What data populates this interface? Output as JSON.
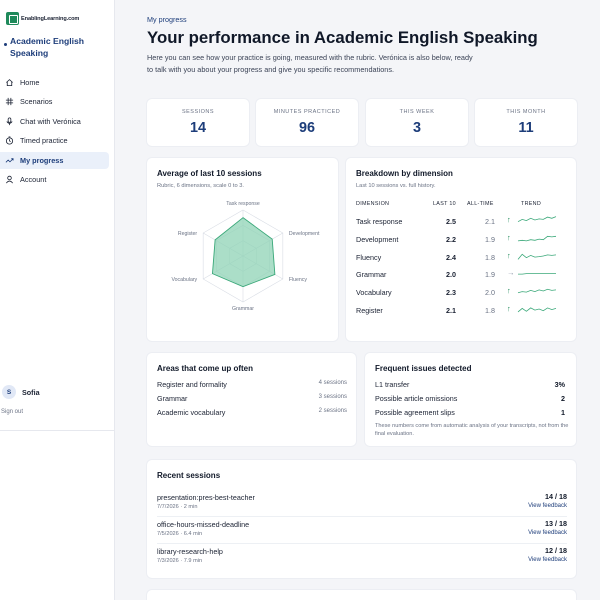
{
  "brand": {
    "name": "EnablingLearning.com"
  },
  "course": {
    "title": "Academic English Speaking"
  },
  "nav": [
    {
      "label": "Home",
      "icon": "home-icon"
    },
    {
      "label": "Scenarios",
      "icon": "grid-icon"
    },
    {
      "label": "Chat with Verónica",
      "icon": "mic-icon"
    },
    {
      "label": "Timed practice",
      "icon": "timer-icon"
    },
    {
      "label": "My progress",
      "icon": "trend-icon",
      "active": true
    },
    {
      "label": "Account",
      "icon": "user-icon"
    }
  ],
  "user": {
    "initial": "S",
    "name": "Sofia",
    "signout": "Sign out"
  },
  "header": {
    "eyebrow": "My progress",
    "title": "Your performance in Academic English Speaking",
    "description": "Here you can see how your practice is going, measured with the rubric. Verónica is also below, ready to talk with you about your progress and give you specific recommendations."
  },
  "stats": [
    {
      "label": "SESSIONS",
      "value": "14"
    },
    {
      "label": "MINUTES PRACTICED",
      "value": "96"
    },
    {
      "label": "THIS WEEK",
      "value": "3"
    },
    {
      "label": "THIS MONTH",
      "value": "11"
    }
  ],
  "radar": {
    "title": "Average of last 10 sessions",
    "subtitle": "Rubric, 6 dimensions, scale 0 to 3.",
    "axes": [
      "Task response",
      "Development",
      "Fluency",
      "Grammar",
      "Vocabulary",
      "Register"
    ],
    "values": [
      2.5,
      2.2,
      2.4,
      2.0,
      2.3,
      2.1
    ],
    "max": 3,
    "fill_color": "#8fd3b5",
    "stroke_color": "#3aa879"
  },
  "breakdown": {
    "title": "Breakdown by dimension",
    "subtitle": "Last 10 sessions vs. full history.",
    "headers": {
      "dimension": "DIMENSION",
      "last10": "LAST 10",
      "alltime": "ALL-TIME",
      "trend": "TREND"
    },
    "rows": [
      {
        "name": "Task response",
        "last10": "2.5",
        "alltime": "2.1",
        "arrow": "↑",
        "trend": [
          1.8,
          2.2,
          2.0,
          2.4,
          2.1,
          2.3,
          2.2,
          2.6,
          2.4,
          2.7
        ]
      },
      {
        "name": "Development",
        "last10": "2.2",
        "alltime": "1.9",
        "arrow": "↑",
        "trend": [
          1.6,
          1.7,
          1.6,
          1.8,
          1.7,
          1.9,
          1.8,
          2.4,
          2.3,
          2.4
        ]
      },
      {
        "name": "Fluency",
        "last10": "2.4",
        "alltime": "1.8",
        "arrow": "↑",
        "trend": [
          1.5,
          2.4,
          1.8,
          2.2,
          1.9,
          2.0,
          2.1,
          2.3,
          2.2,
          2.3
        ]
      },
      {
        "name": "Grammar",
        "last10": "2.0",
        "alltime": "1.9",
        "arrow": "→",
        "trend": [
          1.9,
          1.9,
          2.0,
          2.0,
          2.0,
          2.0,
          2.0,
          2.0,
          2.0,
          2.0
        ]
      },
      {
        "name": "Vocabulary",
        "last10": "2.3",
        "alltime": "2.0",
        "arrow": "↑",
        "trend": [
          1.8,
          2.0,
          1.9,
          2.2,
          2.0,
          2.3,
          2.1,
          2.4,
          2.2,
          2.3
        ]
      },
      {
        "name": "Register",
        "last10": "2.1",
        "alltime": "1.8",
        "arrow": "↑",
        "trend": [
          1.6,
          2.2,
          1.7,
          2.3,
          1.9,
          2.1,
          1.8,
          2.3,
          2.0,
          2.2
        ]
      }
    ]
  },
  "areas": {
    "title": "Areas that come up often",
    "items": [
      {
        "name": "Register and formality",
        "count": "4 sessions"
      },
      {
        "name": "Grammar",
        "count": "3 sessions"
      },
      {
        "name": "Academic vocabulary",
        "count": "2 sessions"
      }
    ]
  },
  "issues": {
    "title": "Frequent issues detected",
    "items": [
      {
        "name": "L1 transfer",
        "value": "3%"
      },
      {
        "name": "Possible article omissions",
        "value": "2"
      },
      {
        "name": "Possible agreement slips",
        "value": "1"
      }
    ],
    "note": "These numbers come from automatic analysis of your transcripts, not from the final evaluation."
  },
  "recent": {
    "title": "Recent sessions",
    "items": [
      {
        "name": "presentation:pres-best-teacher",
        "meta": "7/7/2026 · 2 min",
        "score": "14 / 18",
        "link": "View feedback"
      },
      {
        "name": "office-hours-missed-deadline",
        "meta": "7/5/2026 · 6.4 min",
        "score": "13 / 18",
        "link": "View feedback"
      },
      {
        "name": "library-research-help",
        "meta": "7/3/2026 · 7.9 min",
        "score": "12 / 18",
        "link": "View feedback"
      }
    ]
  },
  "colors": {
    "accent": "#1d3d7a",
    "success": "#1f8a5b",
    "spark": "#3aa879"
  }
}
